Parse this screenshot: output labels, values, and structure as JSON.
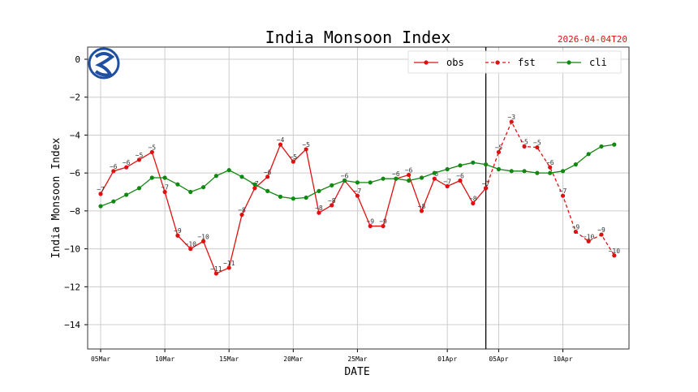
{
  "chart_data": {
    "type": "line",
    "title": "India Monsoon Index",
    "timestamp": "2026-04-04T20",
    "xlabel": "DATE",
    "ylabel": "India Monsoon Index",
    "ylim": [
      -15.2,
      0.6
    ],
    "yticks": [
      0,
      -2,
      -4,
      -6,
      -8,
      -10,
      -12,
      -14
    ],
    "ytick_labels": [
      "0",
      "−2",
      "−4",
      "−6",
      "−8",
      "−10",
      "−12",
      "−14"
    ],
    "xticks": [
      {
        "day": 0,
        "label": "05Mar"
      },
      {
        "day": 5,
        "label": "10Mar"
      },
      {
        "day": 10,
        "label": "15Mar"
      },
      {
        "day": 15,
        "label": "20Mar"
      },
      {
        "day": 20,
        "label": "25Mar"
      },
      {
        "day": 27,
        "label": "01Apr"
      },
      {
        "day": 31,
        "label": "05Apr"
      },
      {
        "day": 36,
        "label": "10Apr"
      }
    ],
    "xlim_days": [
      -1,
      41
    ],
    "vline_day": 30,
    "grid": true,
    "legend_placement": "top-right",
    "colors": {
      "obs": "#e01010",
      "fst": "#e01010",
      "cli": "#118811"
    },
    "series": [
      {
        "name": "obs",
        "start_day": 0,
        "style": "solid",
        "labeled": true,
        "values": [
          -7.1,
          -5.9,
          -5.7,
          -5.3,
          -4.9,
          -7.0,
          -9.3,
          -10.0,
          -9.6,
          -11.3,
          -11.0,
          -8.2,
          -6.8,
          -6.2,
          -4.5,
          -5.4,
          -4.75,
          -8.1,
          -7.7,
          -6.4,
          -7.2,
          -8.8,
          -8.8,
          -6.3,
          -6.1,
          -8.0,
          -6.3,
          -6.7,
          -6.4,
          -7.6,
          -6.8
        ]
      },
      {
        "name": "fst",
        "start_day": 30,
        "style": "dashed",
        "labeled": true,
        "values": [
          -6.8,
          -4.9,
          -3.3,
          -4.6,
          -4.65,
          -5.7,
          -7.2,
          -9.1,
          -9.6,
          -9.25,
          -10.35
        ]
      },
      {
        "name": "cli",
        "start_day": 0,
        "style": "solid",
        "labeled": false,
        "values": [
          -7.75,
          -7.5,
          -7.15,
          -6.8,
          -6.25,
          -6.25,
          -6.6,
          -7.0,
          -6.75,
          -6.15,
          -5.85,
          -6.2,
          -6.6,
          -6.95,
          -7.25,
          -7.35,
          -7.3,
          -6.95,
          -6.65,
          -6.4,
          -6.5,
          -6.5,
          -6.3,
          -6.3,
          -6.4,
          -6.25,
          -6.0,
          -5.8,
          -5.6,
          -5.45,
          -5.55,
          -5.8,
          -5.9,
          -5.9,
          -6.0,
          -6.0,
          -5.9,
          -5.55,
          -5.0,
          -4.6,
          -4.5
        ]
      }
    ]
  }
}
